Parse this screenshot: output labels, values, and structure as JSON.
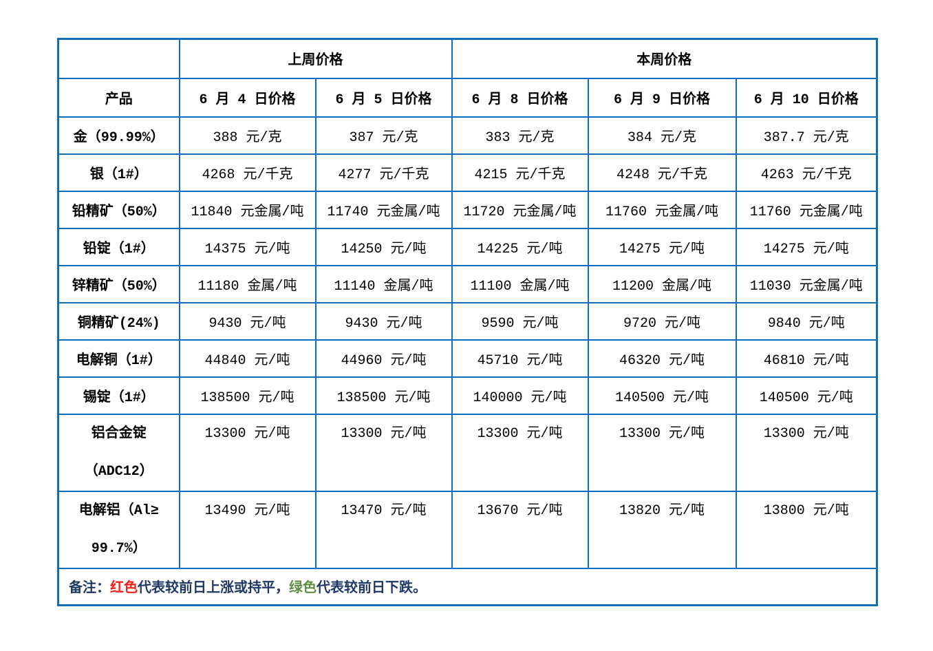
{
  "colors": {
    "border": "#0d6ebe",
    "red": "#f81e16",
    "green": "#618c43",
    "navy": "#1f3864"
  },
  "table": {
    "header": {
      "last_week": "上周价格",
      "this_week": "本周价格",
      "product": "产品",
      "dates": [
        "6 月 4 日价格",
        "6 月 5 日价格",
        "6 月 8 日价格",
        "6 月 9 日价格",
        "6 月 10 日价格"
      ]
    },
    "rows": [
      {
        "product_lines": [
          "金（99.99%）"
        ],
        "tall": false,
        "cells": [
          {
            "text": "388 元/克",
            "color": "green"
          },
          {
            "text": "387 元/克",
            "color": "green"
          },
          {
            "text": "383 元/克",
            "color": "green"
          },
          {
            "text": "384 元/克",
            "color": "red"
          },
          {
            "text": "387.7 元/克",
            "color": "red"
          }
        ]
      },
      {
        "product_lines": [
          "银（1#）"
        ],
        "tall": false,
        "cells": [
          {
            "text": "4268 元/千克",
            "color": "green"
          },
          {
            "text": "4277 元/千克",
            "color": "red"
          },
          {
            "text": "4215 元/千克",
            "color": "green"
          },
          {
            "text": "4248 元/千克",
            "color": "red"
          },
          {
            "text": "4263 元/千克",
            "color": "red"
          }
        ]
      },
      {
        "product_lines": [
          "铅精矿（50%）"
        ],
        "tall": false,
        "cells": [
          {
            "text": "11840 元金属/吨",
            "color": "green"
          },
          {
            "text": "11740 元金属/吨",
            "color": "green"
          },
          {
            "text": "11720 元金属/吨",
            "color": "green"
          },
          {
            "text": "11760 元金属/吨",
            "color": "red"
          },
          {
            "text": "11760 元金属/吨",
            "color": "red"
          }
        ]
      },
      {
        "product_lines": [
          "铅锭（1#）"
        ],
        "tall": false,
        "cells": [
          {
            "text": "14375 元/吨",
            "color": "green"
          },
          {
            "text": "14250 元/吨",
            "color": "green"
          },
          {
            "text": "14225 元/吨",
            "color": "green"
          },
          {
            "text": "14275 元/吨",
            "color": "red"
          },
          {
            "text": "14275 元/吨",
            "color": "red"
          }
        ]
      },
      {
        "product_lines": [
          "锌精矿（50%）"
        ],
        "tall": false,
        "cells": [
          {
            "text": "11180 金属/吨",
            "color": "red"
          },
          {
            "text": "11140 金属/吨",
            "color": "green"
          },
          {
            "text": "11100 金属/吨",
            "color": "green"
          },
          {
            "text": "11200 金属/吨",
            "color": "red"
          },
          {
            "text": "11030 元金属/吨",
            "color": "green"
          }
        ]
      },
      {
        "product_lines": [
          "铜精矿(24%)"
        ],
        "tall": false,
        "cells": [
          {
            "text": "9430 元/吨",
            "color": "red"
          },
          {
            "text": "9430 元/吨",
            "color": "red"
          },
          {
            "text": "9590 元/吨",
            "color": "red"
          },
          {
            "text": "9720 元/吨",
            "color": "red"
          },
          {
            "text": "9840 元/吨",
            "color": "red"
          }
        ]
      },
      {
        "product_lines": [
          "电解铜（1#）"
        ],
        "tall": false,
        "cells": [
          {
            "text": "44840 元/吨",
            "color": "green"
          },
          {
            "text": "44960 元/吨",
            "color": "red"
          },
          {
            "text": "45710 元/吨",
            "color": "red"
          },
          {
            "text": "46320 元/吨",
            "color": "red"
          },
          {
            "text": "46810 元/吨",
            "color": "red"
          }
        ]
      },
      {
        "product_lines": [
          "锡锭（1#）"
        ],
        "tall": false,
        "cells": [
          {
            "text": "138500 元/吨",
            "color": "green"
          },
          {
            "text": "138500 元/吨",
            "color": "red"
          },
          {
            "text": "140000 元/吨",
            "color": "red"
          },
          {
            "text": "140500 元/吨",
            "color": "red"
          },
          {
            "text": "140500 元/吨",
            "color": "red"
          }
        ]
      },
      {
        "product_lines": [
          "铝合金锭",
          "（ADC12）"
        ],
        "tall": true,
        "cells": [
          {
            "text": "13300 元/吨",
            "color": "red"
          },
          {
            "text": "13300 元/吨",
            "color": "red"
          },
          {
            "text": "13300 元/吨",
            "color": "red"
          },
          {
            "text": "13300 元/吨",
            "color": "red"
          },
          {
            "text": "13300 元/吨",
            "color": "red"
          }
        ]
      },
      {
        "product_lines": [
          "电解铝（Al≥",
          "99.7%）"
        ],
        "tall": true,
        "cells": [
          {
            "text": "13490 元/吨",
            "color": "red"
          },
          {
            "text": "13470 元/吨",
            "color": "green"
          },
          {
            "text": "13670 元/吨",
            "color": "red"
          },
          {
            "text": "13820 元/吨",
            "color": "red"
          },
          {
            "text": "13800 元/吨",
            "color": "green"
          }
        ]
      }
    ],
    "note": {
      "segments": [
        {
          "text": "备注：",
          "color": "navy"
        },
        {
          "text": "红色",
          "color": "red"
        },
        {
          "text": "代表较前日上涨或持平，",
          "color": "navy"
        },
        {
          "text": "绿色",
          "color": "green"
        },
        {
          "text": "代表较前日下跌。",
          "color": "navy"
        }
      ]
    }
  }
}
